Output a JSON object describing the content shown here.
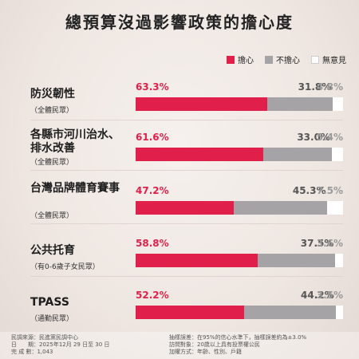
{
  "title": "總預算沒過影響政策的擔心度",
  "colors": {
    "worried": "#e0204a",
    "not_worried": "#a5a3a5",
    "no_opinion": "#ffffff"
  },
  "legend": [
    {
      "label": "擔心",
      "color": "#e0204a"
    },
    {
      "label": "不擔心",
      "color": "#a5a3a5"
    },
    {
      "label": "無意見",
      "color": "#ffffff"
    }
  ],
  "chart_data": {
    "type": "bar",
    "stacked": true,
    "orientation": "horizontal",
    "title": "總預算沒過影響政策的擔心度",
    "categories": [
      "防災韌性",
      "各縣市河川治水、排水改善",
      "台灣品牌體育賽事",
      "公共托育",
      "TPASS"
    ],
    "subtitles": [
      "（全體民眾）",
      "（全體民眾）",
      "（全體民眾）",
      "（有0-6歲子女民眾）",
      "（通勤民眾）"
    ],
    "series": [
      {
        "name": "擔心",
        "values": [
          63.3,
          61.6,
          47.2,
          58.8,
          52.2
        ]
      },
      {
        "name": "不擔心",
        "values": [
          31.8,
          33.0,
          45.3,
          37.5,
          44.2
        ]
      },
      {
        "name": "無意見",
        "values": [
          4.8,
          5.4,
          7.5,
          3.6,
          3.5
        ]
      }
    ],
    "value_labels": [
      [
        "63.3%",
        "31.8%",
        "4.8%"
      ],
      [
        "61.6%",
        "33.0%",
        "5.4%"
      ],
      [
        "47.2%",
        "45.3%",
        "7.5%"
      ],
      [
        "58.8%",
        "37.5%",
        "3.6%"
      ],
      [
        "52.2%",
        "44.2%",
        "3.5%"
      ]
    ],
    "xlim": [
      0,
      100
    ],
    "legend_position": "top-right"
  },
  "footer": {
    "left": [
      "民調來源：民進黨民調中心",
      "日　　期：2025年12月 29 日至 30 日",
      "完 成 數：1,043"
    ],
    "right": [
      "抽樣誤差：在95%的信心水準下，抽樣誤差約為±3.0%",
      "訪問對象：20歲以上具有投票權公民",
      "加權方式：年齡、性別、戶籍"
    ]
  }
}
